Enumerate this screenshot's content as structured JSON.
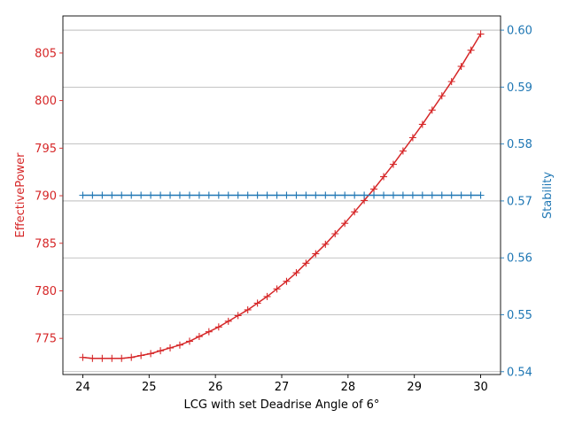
{
  "chart_data": {
    "type": "line",
    "xlabel": "LCG with set Deadrise Angle of 6°",
    "ylabel_left": "EffectivePower",
    "ylabel_right": "Stability",
    "xlim": [
      23.7,
      30.3
    ],
    "ylim_left": [
      771.2,
      808.9
    ],
    "ylim_right": [
      0.5395,
      0.6025
    ],
    "x_ticks": [
      24,
      25,
      26,
      27,
      28,
      29,
      30
    ],
    "y_left_ticks": [
      775,
      780,
      785,
      790,
      795,
      800,
      805
    ],
    "y_right_ticks": [
      0.54,
      0.55,
      0.56,
      0.57,
      0.58,
      0.59,
      0.6
    ],
    "x_tick_labels": [
      "24",
      "25",
      "26",
      "27",
      "28",
      "29",
      "30"
    ],
    "y_left_tick_labels": [
      "775",
      "780",
      "785",
      "790",
      "795",
      "800",
      "805"
    ],
    "y_right_tick_labels": [
      "0.54",
      "0.55",
      "0.56",
      "0.57",
      "0.58",
      "0.59",
      "0.60"
    ],
    "grid": "horizontal lines at right-axis ticks",
    "colors": {
      "left": "#d62728",
      "right": "#1f77b4"
    },
    "x": [
      24.0,
      24.146,
      24.293,
      24.439,
      24.585,
      24.732,
      24.878,
      25.024,
      25.171,
      25.317,
      25.463,
      25.61,
      25.756,
      25.902,
      26.049,
      26.195,
      26.341,
      26.488,
      26.634,
      26.78,
      26.927,
      27.073,
      27.22,
      27.366,
      27.512,
      27.659,
      27.805,
      27.951,
      28.098,
      28.244,
      28.39,
      28.537,
      28.683,
      28.829,
      28.976,
      29.122,
      29.268,
      29.415,
      29.561,
      29.707,
      29.854,
      30.0
    ],
    "series": [
      {
        "name": "EffectivePower",
        "axis": "left",
        "marker": "+",
        "values": [
          773.0,
          772.9,
          772.9,
          772.9,
          772.9,
          773.0,
          773.2,
          773.4,
          773.7,
          774.0,
          774.3,
          774.7,
          775.2,
          775.7,
          776.2,
          776.8,
          777.4,
          778.0,
          778.7,
          779.4,
          780.2,
          781.0,
          781.9,
          782.9,
          783.9,
          784.9,
          786.0,
          787.1,
          788.3,
          789.5,
          790.7,
          792.0,
          793.3,
          794.7,
          796.1,
          797.5,
          799.0,
          800.5,
          802.0,
          803.6,
          805.3,
          807.0
        ]
      },
      {
        "name": "Stability",
        "axis": "right",
        "marker": "+",
        "values": [
          0.571,
          0.571,
          0.571,
          0.571,
          0.571,
          0.571,
          0.571,
          0.571,
          0.571,
          0.571,
          0.571,
          0.571,
          0.571,
          0.571,
          0.571,
          0.571,
          0.571,
          0.571,
          0.571,
          0.571,
          0.571,
          0.571,
          0.571,
          0.571,
          0.571,
          0.571,
          0.571,
          0.571,
          0.571,
          0.571,
          0.571,
          0.571,
          0.571,
          0.571,
          0.571,
          0.571,
          0.571,
          0.571,
          0.571,
          0.571,
          0.571,
          0.571
        ]
      }
    ]
  }
}
